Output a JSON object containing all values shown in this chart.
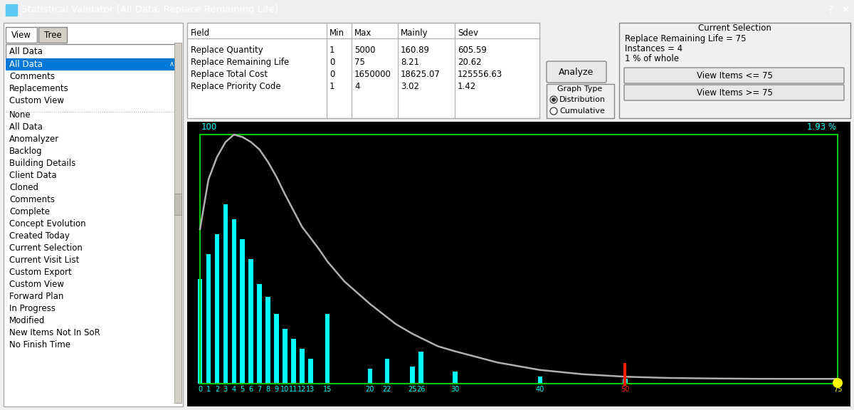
{
  "title": "Statistical Validator [All Data, Replace Remaining Life]",
  "title_bg": "#0078d7",
  "window_bg": "#f0f0f0",
  "table_fields": [
    "Replace Quantity",
    "Replace Remaining Life",
    "Replace Total Cost",
    "Replace Priority Code"
  ],
  "table_min": [
    "1",
    "0",
    "0",
    "1"
  ],
  "table_max": [
    "5000",
    "75",
    "1650000",
    "4"
  ],
  "table_mainly": [
    "160.89",
    "8.21",
    "18625.07",
    "3.02"
  ],
  "table_sdev": [
    "605.59",
    "20.62",
    "125556.63",
    "1.42"
  ],
  "left_panel_top_items": [
    "All Data",
    "Comments",
    "Replacements",
    "Custom View"
  ],
  "left_panel_items": [
    "None",
    "All Data",
    "Anomalyzer",
    "Backlog",
    "Building Details",
    "Client Data",
    "Cloned",
    "Comments",
    "Complete",
    "Concept Evolution",
    "Created Today",
    "Current Selection",
    "Current Visit List",
    "Custom Export",
    "Custom View",
    "Forward Plan",
    "In Progress",
    "Modified",
    "New Items Not In SoR",
    "No Finish Time"
  ],
  "selected_item": "All Data",
  "graph_bg": "#000000",
  "bar_color": "#00ffff",
  "curve_color": "#b0b0b0",
  "label_color": "#00ffff",
  "green_color": "#00cc00",
  "marker_50_color": "#ff2200",
  "marker_75_color": "#ffff00",
  "pct_label": "1.93 %",
  "bar_positions": [
    0,
    1,
    2,
    3,
    4,
    5,
    6,
    7,
    8,
    9,
    10,
    11,
    12,
    13,
    15,
    20,
    22,
    25,
    26,
    30,
    40,
    50,
    75
  ],
  "bar_heights": [
    42,
    52,
    60,
    72,
    66,
    58,
    50,
    40,
    35,
    28,
    22,
    18,
    14,
    10,
    28,
    6,
    10,
    7,
    13,
    5,
    3,
    2,
    0.5
  ],
  "curve_x": [
    0,
    0.5,
    1,
    2,
    3,
    4,
    5,
    6,
    7,
    8,
    9,
    10,
    12,
    14,
    15,
    17,
    20,
    23,
    25,
    28,
    30,
    35,
    40,
    45,
    50,
    55,
    60,
    65,
    70,
    75
  ],
  "curve_y": [
    62,
    72,
    82,
    91,
    97,
    100,
    99,
    97,
    94,
    89,
    83,
    76,
    63,
    54,
    49,
    41,
    32,
    24,
    20,
    15,
    13,
    8.5,
    5.5,
    3.8,
    2.8,
    2.3,
    2.1,
    1.97,
    1.93,
    1.93
  ],
  "current_selection_text": [
    "Replace Remaining Life = 75",
    "Instances = 4",
    "1 % of whole"
  ],
  "tab_view": "View",
  "tab_tree": "Tree",
  "all_data_label": "All Data"
}
